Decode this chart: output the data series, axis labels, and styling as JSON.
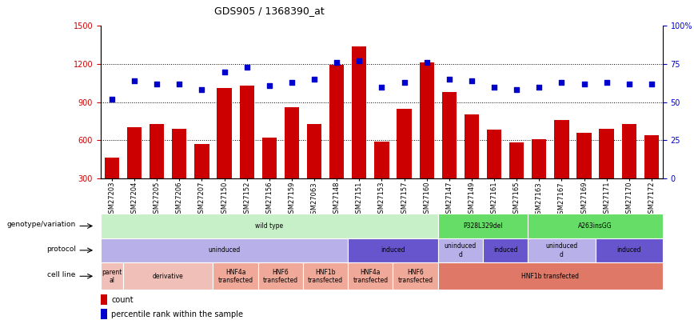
{
  "title": "GDS905 / 1368390_at",
  "samples": [
    "GSM27203",
    "GSM27204",
    "GSM27205",
    "GSM27206",
    "GSM27207",
    "GSM27150",
    "GSM27152",
    "GSM27156",
    "GSM27159",
    "GSM27063",
    "GSM27148",
    "GSM27151",
    "GSM27153",
    "GSM27157",
    "GSM27160",
    "GSM27147",
    "GSM27149",
    "GSM27161",
    "GSM27165",
    "GSM27163",
    "GSM27167",
    "GSM27169",
    "GSM27171",
    "GSM27170",
    "GSM27172"
  ],
  "counts": [
    460,
    700,
    730,
    690,
    570,
    1010,
    1030,
    620,
    860,
    730,
    1195,
    1340,
    590,
    850,
    1215,
    980,
    800,
    680,
    580,
    610,
    760,
    660,
    690,
    730,
    640
  ],
  "percentile": [
    52,
    64,
    62,
    62,
    58,
    70,
    73,
    61,
    63,
    65,
    76,
    77,
    60,
    63,
    76,
    65,
    64,
    60,
    58,
    60,
    63,
    62,
    63,
    62,
    62
  ],
  "bar_color": "#cc0000",
  "dot_color": "#0000cc",
  "ylim_left": [
    300,
    1500
  ],
  "ylim_right": [
    0,
    100
  ],
  "yticks_left": [
    300,
    600,
    900,
    1200,
    1500
  ],
  "yticks_right": [
    0,
    25,
    50,
    75,
    100
  ],
  "grid_vals": [
    600,
    900,
    1200
  ],
  "genotype_rows": [
    {
      "label": "wild type",
      "start": 0,
      "end": 15,
      "color": "#c8f0c8"
    },
    {
      "label": "P328L329del",
      "start": 15,
      "end": 19,
      "color": "#66dd66"
    },
    {
      "label": "A263insGG",
      "start": 19,
      "end": 25,
      "color": "#66dd66"
    }
  ],
  "protocol_rows": [
    {
      "label": "uninduced",
      "start": 0,
      "end": 11,
      "color": "#b8b0e8"
    },
    {
      "label": "induced",
      "start": 11,
      "end": 15,
      "color": "#6655cc"
    },
    {
      "label": "uninduced\nd",
      "start": 15,
      "end": 17,
      "color": "#b8b0e8"
    },
    {
      "label": "induced",
      "start": 17,
      "end": 19,
      "color": "#6655cc"
    },
    {
      "label": "uninduced\nd",
      "start": 19,
      "end": 22,
      "color": "#b8b0e8"
    },
    {
      "label": "induced",
      "start": 22,
      "end": 25,
      "color": "#6655cc"
    }
  ],
  "cellline_rows": [
    {
      "label": "parent\nal",
      "start": 0,
      "end": 1,
      "color": "#f0c0b8"
    },
    {
      "label": "derivative",
      "start": 1,
      "end": 5,
      "color": "#f0c0b8"
    },
    {
      "label": "HNF4a\ntransfected",
      "start": 5,
      "end": 7,
      "color": "#f0a898"
    },
    {
      "label": "HNF6\ntransfected",
      "start": 7,
      "end": 9,
      "color": "#f0a898"
    },
    {
      "label": "HNF1b\ntransfected",
      "start": 9,
      "end": 11,
      "color": "#f0a898"
    },
    {
      "label": "HNF4a\ntransfected",
      "start": 11,
      "end": 13,
      "color": "#f0a898"
    },
    {
      "label": "HNF6\ntransfected",
      "start": 13,
      "end": 15,
      "color": "#f0a898"
    },
    {
      "label": "HNF1b transfected",
      "start": 15,
      "end": 25,
      "color": "#e07868"
    }
  ],
  "row_labels": [
    "genotype/variation",
    "protocol",
    "cell line"
  ],
  "legend_count_color": "#cc0000",
  "legend_dot_color": "#0000cc"
}
